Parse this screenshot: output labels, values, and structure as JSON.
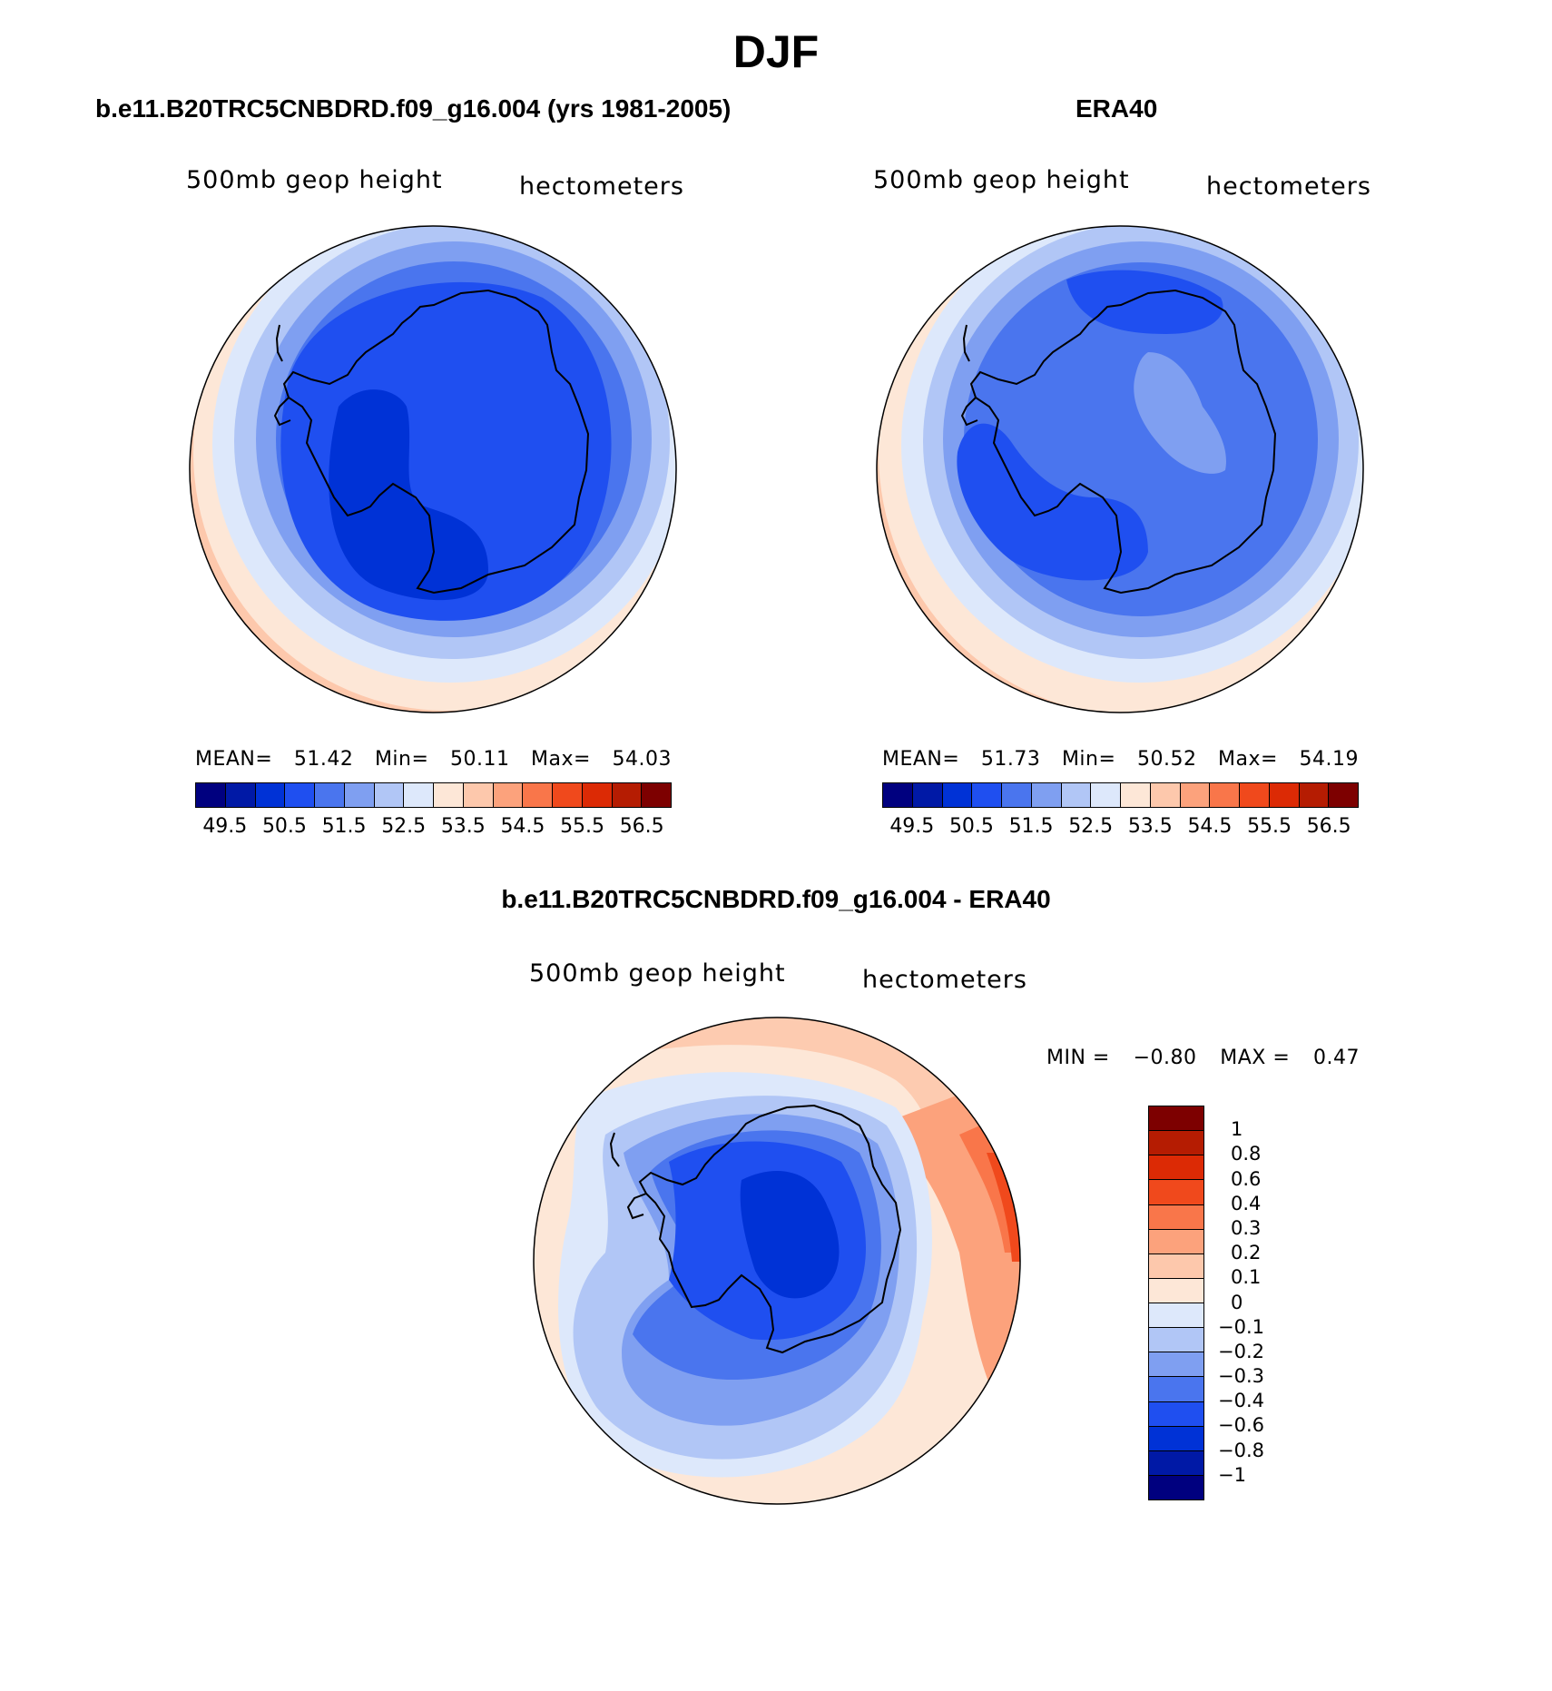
{
  "figure": {
    "title": "DJF"
  },
  "panels": {
    "model": {
      "title": "b.e11.B20TRC5CNBDRD.f09_g16.004 (yrs 1981-2005)",
      "variable_label": "500mb geop height",
      "units_label": "hectometers",
      "stats": {
        "mean_label": "MEAN=",
        "mean": "51.42",
        "min_label": "Min=",
        "min": "50.11",
        "max_label": "Max=",
        "max": "54.03"
      }
    },
    "obs": {
      "title": "ERA40",
      "variable_label": "500mb geop height",
      "units_label": "hectometers",
      "stats": {
        "mean_label": "MEAN=",
        "mean": "51.73",
        "min_label": "Min=",
        "min": "50.52",
        "max_label": "Max=",
        "max": "54.19"
      }
    },
    "diff": {
      "title": "b.e11.B20TRC5CNBDRD.f09_g16.004 - ERA40",
      "variable_label": "500mb geop height",
      "units_label": "hectometers",
      "stats": {
        "min_label": "MIN =",
        "min": "−0.80",
        "max_label": "MAX =",
        "max": "0.47"
      }
    }
  },
  "colorbars": {
    "abs": {
      "colors": [
        "#00007f",
        "#0019a6",
        "#0032d6",
        "#1f4ff0",
        "#4a75ee",
        "#7f9ff1",
        "#b1c6f6",
        "#dde8fb",
        "#fde7d7",
        "#fdc8ac",
        "#fca27c",
        "#f9764a",
        "#f0491c",
        "#dc2a05",
        "#b51c02",
        "#7d0000"
      ],
      "tick_labels": [
        "49.5",
        "50.5",
        "51.5",
        "52.5",
        "53.5",
        "54.5",
        "55.5",
        "56.5"
      ]
    },
    "diff": {
      "colors": [
        "#7d0000",
        "#b51c02",
        "#dc2a05",
        "#f0491c",
        "#f9764a",
        "#fca27c",
        "#fdc8ac",
        "#fde7d7",
        "#dde8fb",
        "#b1c6f6",
        "#7f9ff1",
        "#4a75ee",
        "#1f4ff0",
        "#0032d6",
        "#0019a6",
        "#00007f"
      ],
      "tick_labels": [
        "1",
        "0.8",
        "0.6",
        "0.4",
        "0.3",
        "0.2",
        "0.1",
        "0",
        "−0.1",
        "−0.2",
        "−0.3",
        "−0.4",
        "−0.6",
        "−0.8",
        "−1"
      ]
    }
  }
}
